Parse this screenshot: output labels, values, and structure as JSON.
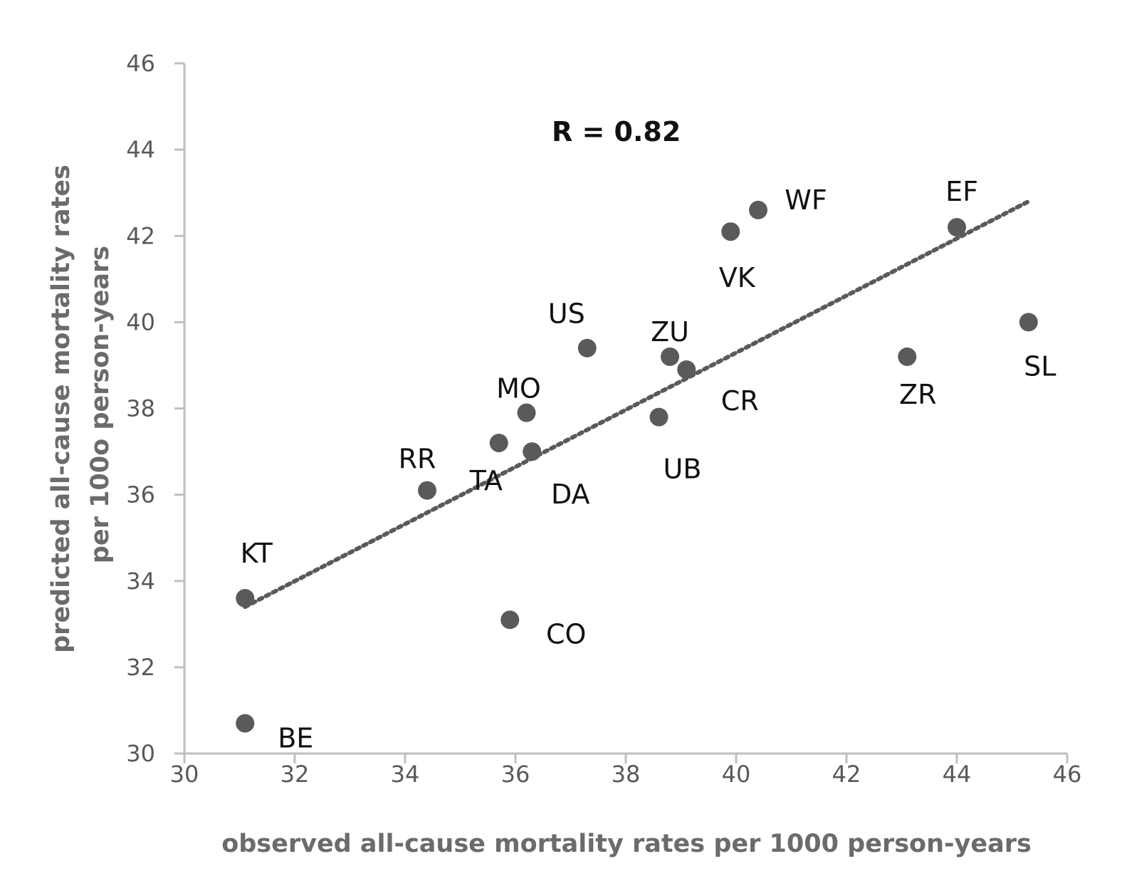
{
  "chart_data": {
    "type": "scatter",
    "title": "",
    "xlabel": "observed all-cause mortality rates per 1000 person-years",
    "ylabel_lines": [
      "predicted all-cause mortality rates",
      "per 100o person-years"
    ],
    "xlim": [
      30,
      46
    ],
    "ylim": [
      30,
      46
    ],
    "xticks": [
      "30",
      "32",
      "34",
      "36",
      "38",
      "40",
      "42",
      "44",
      "46"
    ],
    "yticks": [
      "30",
      "32",
      "34",
      "36",
      "38",
      "40",
      "42",
      "44",
      "46"
    ],
    "grid": false,
    "legend": "none",
    "annotation": "R = 0.82",
    "colors": {
      "marker": "#5a5a5a",
      "trendline": "#5a5a5a",
      "axis": "#bfbfbf"
    },
    "trendline": {
      "style": "dotted",
      "x": [
        31.1,
        45.3
      ],
      "y": [
        33.4,
        42.8
      ]
    },
    "points": [
      {
        "label": "KT",
        "x": 31.1,
        "y": 33.6
      },
      {
        "label": "BE",
        "x": 31.1,
        "y": 30.7
      },
      {
        "label": "RR",
        "x": 34.4,
        "y": 36.1
      },
      {
        "label": "TA",
        "x": 35.7,
        "y": 37.2
      },
      {
        "label": "CO",
        "x": 35.9,
        "y": 33.1
      },
      {
        "label": "MO",
        "x": 36.2,
        "y": 37.9
      },
      {
        "label": "DA",
        "x": 36.3,
        "y": 37.0
      },
      {
        "label": "US",
        "x": 37.3,
        "y": 39.4
      },
      {
        "label": "UB",
        "x": 38.6,
        "y": 37.8
      },
      {
        "label": "ZU",
        "x": 38.8,
        "y": 39.2
      },
      {
        "label": "CR",
        "x": 39.1,
        "y": 38.9
      },
      {
        "label": "VK",
        "x": 39.9,
        "y": 42.1
      },
      {
        "label": "WF",
        "x": 40.4,
        "y": 42.6
      },
      {
        "label": "ZR",
        "x": 43.1,
        "y": 39.2
      },
      {
        "label": "EF",
        "x": 44.0,
        "y": 42.2
      },
      {
        "label": "SL",
        "x": 45.3,
        "y": 40.0
      }
    ]
  }
}
